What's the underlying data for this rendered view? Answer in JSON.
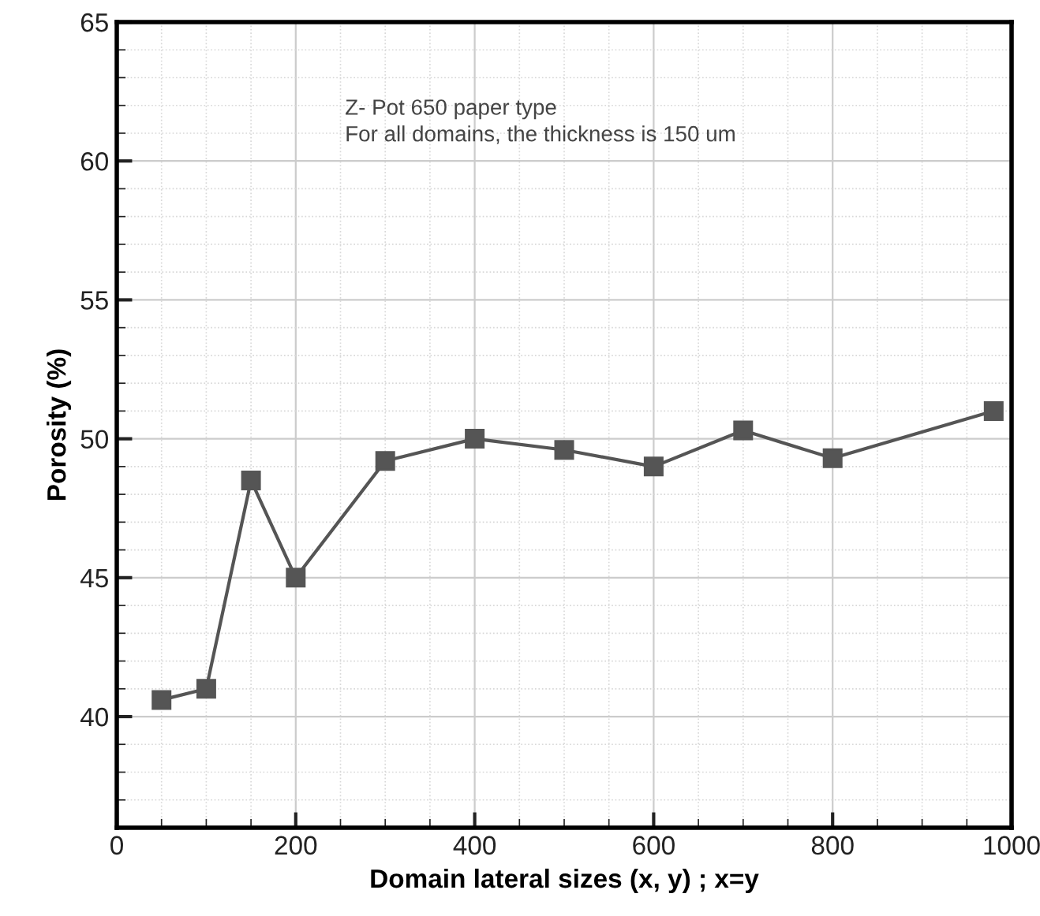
{
  "chart_data": {
    "type": "line",
    "xlabel": "Domain lateral sizes (x, y) ; x=y",
    "ylabel": "Porosity (%)",
    "x": [
      50,
      100,
      150,
      200,
      300,
      400,
      500,
      600,
      700,
      800,
      980
    ],
    "series": [
      {
        "color": "#555555",
        "values": [
          40.6,
          41.0,
          48.5,
          45.0,
          49.2,
          50.0,
          49.6,
          49.0,
          50.3,
          49.3,
          51.0
        ]
      }
    ],
    "xlim": [
      0,
      1000
    ],
    "xticks": [
      0,
      200,
      400,
      600,
      800,
      1000
    ],
    "ylim": [
      36,
      65
    ],
    "yticks": [
      40,
      45,
      50,
      55,
      60,
      65
    ],
    "grid": true,
    "marker": "square",
    "line_style": "solid",
    "annotations": [
      "Z- Pot 650 paper type",
      "For all domains, the thickness is 150 um"
    ]
  }
}
